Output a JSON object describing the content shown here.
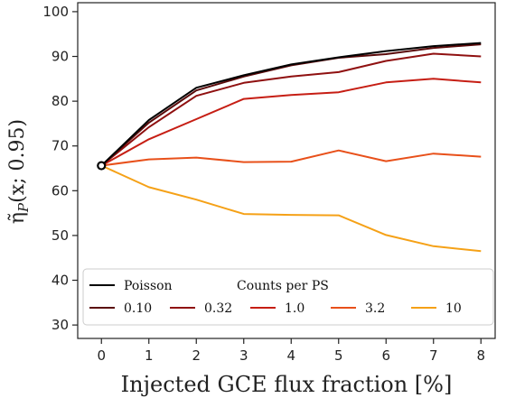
{
  "chart_data": {
    "type": "line",
    "xlabel": "Injected GCE flux fraction [%]",
    "ylabel": "η̃P(x; 0.95)",
    "ylabel_parts": {
      "base": "η̃",
      "sub": "P",
      "args": "(x; 0.95)"
    },
    "x": [
      0,
      1,
      2,
      3,
      4,
      5,
      6,
      7,
      8
    ],
    "xlim": [
      -0.5,
      8.3
    ],
    "ylim": [
      27,
      102
    ],
    "xticks": [
      "0",
      "1",
      "2",
      "3",
      "4",
      "5",
      "6",
      "7",
      "8"
    ],
    "yticks": [
      "30",
      "40",
      "50",
      "60",
      "70",
      "80",
      "90",
      "100"
    ],
    "yticks_values": [
      30,
      40,
      50,
      60,
      70,
      80,
      90,
      100
    ],
    "grid": false,
    "legend_placement": "bottom",
    "legend_poisson_label": "Poisson",
    "legend_group_title": "Counts per PS",
    "start_marker": {
      "x": 0,
      "y": 65.6
    },
    "series": [
      {
        "name": "Poisson",
        "color": "#000000",
        "values": [
          65.6,
          75.8,
          83.0,
          85.8,
          88.2,
          89.8,
          91.2,
          92.3,
          93.0
        ]
      },
      {
        "name": "0.10",
        "color": "#5a0a0a",
        "values": [
          65.6,
          75.2,
          82.4,
          85.5,
          88.0,
          89.7,
          90.5,
          91.9,
          92.7
        ]
      },
      {
        "name": "0.32",
        "color": "#8f1010",
        "values": [
          65.6,
          74.2,
          81.2,
          84.1,
          85.5,
          86.5,
          89.0,
          90.6,
          90.0
        ]
      },
      {
        "name": "1.0",
        "color": "#c61e14",
        "values": [
          65.6,
          71.5,
          76.0,
          80.5,
          81.4,
          82.0,
          84.2,
          85.0,
          84.2
        ]
      },
      {
        "name": "3.2",
        "color": "#e8501a",
        "values": [
          65.6,
          67.0,
          67.4,
          66.4,
          66.5,
          69.0,
          66.6,
          68.3,
          67.6
        ]
      },
      {
        "name": "10",
        "color": "#f5a117",
        "values": [
          65.6,
          60.8,
          58.0,
          54.8,
          54.6,
          54.5,
          50.1,
          47.6,
          46.5
        ]
      }
    ]
  }
}
